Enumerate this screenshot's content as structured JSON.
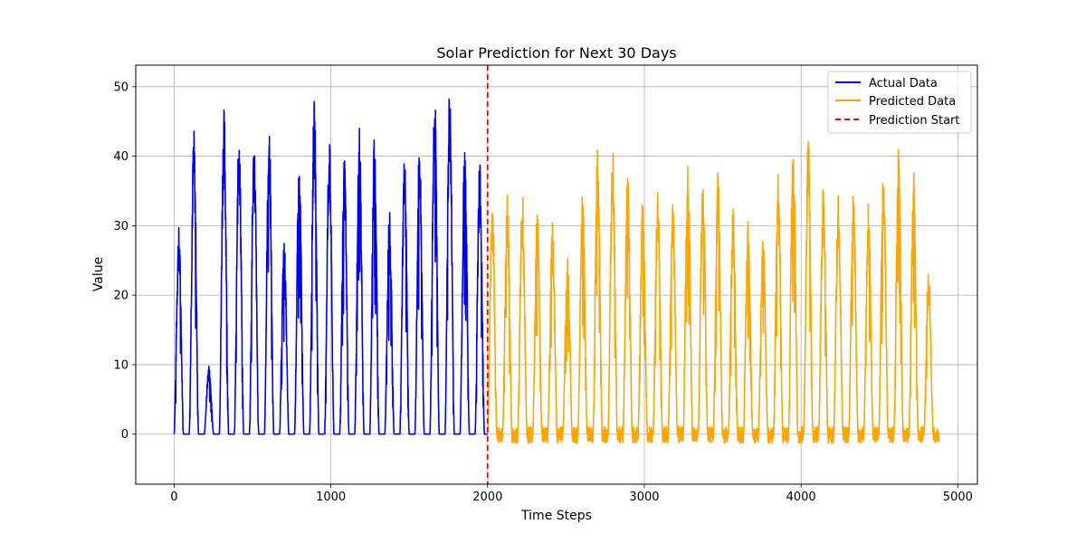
{
  "chart_data": {
    "type": "line",
    "title": "Solar Prediction for Next 30 Days",
    "xlabel": "Time Steps",
    "ylabel": "Value",
    "xlim": [
      -245,
      5125
    ],
    "ylim": [
      -7.2,
      53.1
    ],
    "xticks": [
      0,
      1000,
      2000,
      3000,
      4000,
      5000
    ],
    "yticks": [
      0,
      10,
      20,
      30,
      40,
      50
    ],
    "grid": true,
    "legend_position": "top-right",
    "period": 96,
    "series": [
      {
        "name": "Actual Data",
        "color": "#0000ff",
        "x_start": 0,
        "x_end": 2000,
        "daily_peaks": [
          30,
          44,
          10,
          47,
          44,
          43,
          45,
          28,
          39,
          48,
          43,
          40,
          44,
          43,
          32,
          40,
          43,
          50,
          50,
          42,
          40
        ]
      },
      {
        "name": "Predicted Data",
        "color": "#ffa500",
        "x_start": 2000,
        "x_end": 4880,
        "daily_peaks": [
          34,
          35,
          35,
          33,
          30,
          26,
          36,
          42,
          42,
          38,
          34,
          36,
          34,
          40,
          39,
          38,
          33,
          31,
          29,
          38,
          43,
          43,
          36,
          34,
          35,
          33,
          39,
          41,
          38,
          24
        ]
      }
    ],
    "vline": {
      "name": "Prediction Start",
      "x": 2000,
      "color": "#ff0000",
      "style": "dashed"
    }
  }
}
